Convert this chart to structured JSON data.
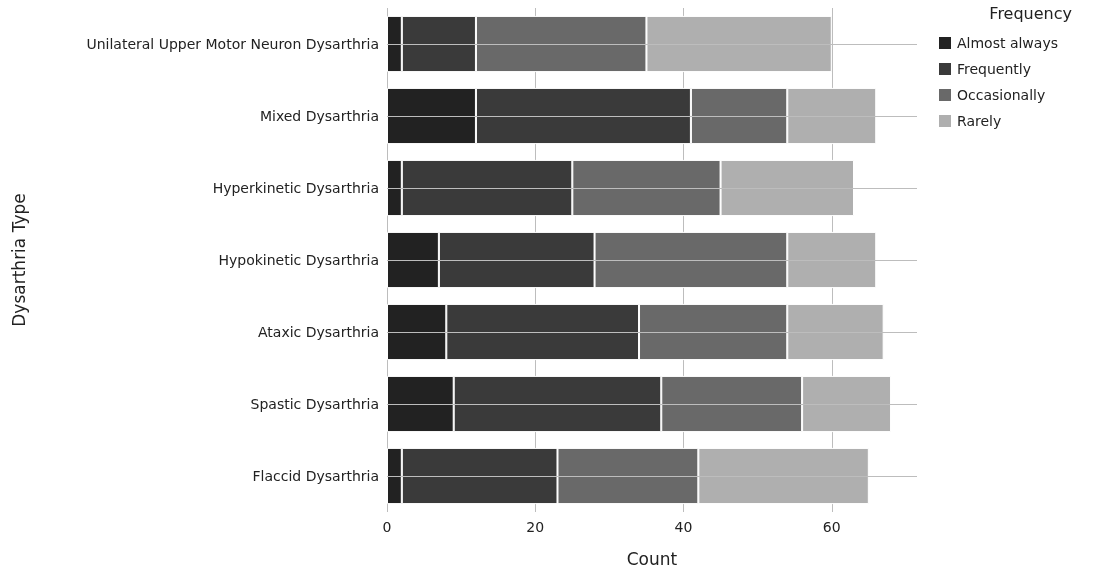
{
  "chart_data": {
    "type": "bar",
    "orientation": "horizontal",
    "stacked": true,
    "xlabel": "Count",
    "ylabel": "Dysarthria Type",
    "legend_title": "Frequency",
    "legend": "top right",
    "grid": true,
    "categories": [
      "Unilateral Upper Motor Neuron Dysarthria",
      "Mixed Dysarthria",
      "Hyperkinetic Dysarthria",
      "Hypokinetic Dysarthria",
      "Ataxic Dysarthria",
      "Spastic Dysarthria",
      "Flaccid Dysarthria"
    ],
    "xlim": [
      0,
      71.5
    ],
    "xticks": [
      0,
      20,
      40,
      60
    ],
    "series": [
      {
        "name": "Almost always",
        "color": "#222222",
        "values": [
          2,
          12,
          2,
          7,
          8,
          9,
          2
        ]
      },
      {
        "name": "Frequently",
        "color": "#3a3a3a",
        "values": [
          10,
          29,
          23,
          21,
          26,
          28,
          21
        ]
      },
      {
        "name": "Occasionally",
        "color": "#696969",
        "values": [
          23,
          13,
          20,
          26,
          20,
          19,
          19
        ]
      },
      {
        "name": "Rarely",
        "color": "#afafaf",
        "values": [
          25,
          12,
          18,
          12,
          13,
          12,
          23
        ]
      }
    ]
  }
}
